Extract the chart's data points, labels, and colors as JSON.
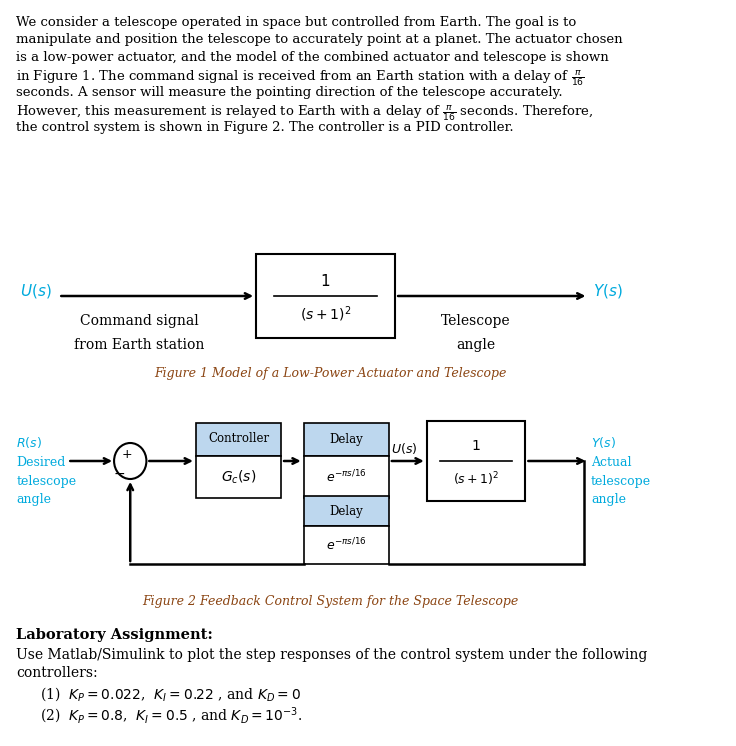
{
  "fig_width": 7.36,
  "fig_height": 7.46,
  "bg_color": "#ffffff",
  "text_color": "#000000",
  "cyan_color": "#00AADD",
  "figure_caption_color": "#8B4513",
  "paragraph": "We consider a telescope operated in space but controlled from Earth. The goal is to\nmanipulate and position the telescope to accurately point at a planet. The actuator chosen\nis a low-power actuator, and the model of the combined actuator and telescope is shown\nin Figure 1. The command signal is received from an Earth station with a delay of $\\frac{\\pi}{16}$\nseconds. A sensor will measure the pointing direction of the telescope accurately.\nHowever, this measurement is relayed to Earth with a delay of $\\frac{\\pi}{16}$ seconds. Therefore,\nthe control system is shown in Figure 2. The controller is a PID controller.",
  "fig1_caption": "Figure 1 Model of a Low-Power Actuator and Telescope",
  "fig2_caption": "Figure 2 Feedback Control System for the Space Telescope",
  "lab_title": "Laboratory Assignment:",
  "lab_text1": "Use Matlab/Simulink to plot the step responses of the control system under the following",
  "lab_text2": "controllers:",
  "lab_item1": "(1)  $K_P = 0.022$,  $K_I = 0.22$ , and $K_D = 0$",
  "lab_item2": "(2)  $K_P = 0.8$,  $K_I = 0.5$ , and $K_D = 10^{-3}$."
}
